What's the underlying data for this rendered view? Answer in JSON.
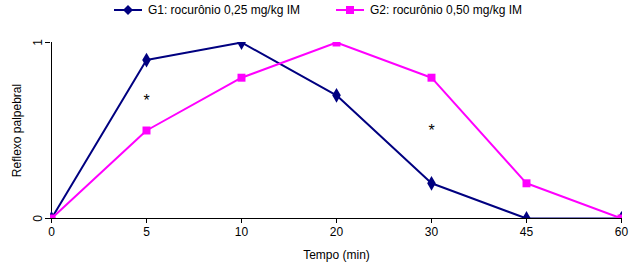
{
  "chart_data": {
    "type": "line",
    "x_label": "Tempo (min)",
    "y_label": "Reflexo palpebral",
    "categories": [
      "0",
      "5",
      "10",
      "20",
      "30",
      "45",
      "60"
    ],
    "series": [
      {
        "name": "G1: rocurônio 0,25 mg/kg IM",
        "color": "#000080",
        "marker": "diamond",
        "values": [
          0,
          0.9,
          1,
          0.7,
          0.2,
          0,
          0
        ]
      },
      {
        "name": "G2: rocurônio 0,50 mg/kg IM",
        "color": "#ff00ff",
        "marker": "square",
        "values": [
          0,
          0.5,
          0.8,
          1,
          0.8,
          0.2,
          0
        ]
      }
    ],
    "ylim": [
      0,
      1
    ],
    "yticks": [
      0,
      1
    ],
    "grid": false,
    "legend": "top",
    "annotations": [
      {
        "text": "*",
        "x": "5",
        "y": 0.67
      },
      {
        "text": "*",
        "x": "30",
        "y": 0.5
      }
    ]
  }
}
